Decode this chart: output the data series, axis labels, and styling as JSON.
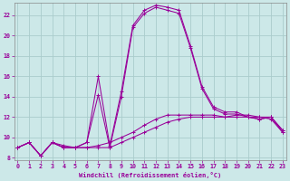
{
  "xlabel": "Windchill (Refroidissement éolien,°C)",
  "bg_color": "#cce8e8",
  "grid_color": "#aacccc",
  "line_color": "#990099",
  "xticks": [
    0,
    1,
    2,
    3,
    4,
    5,
    6,
    7,
    8,
    9,
    10,
    11,
    12,
    13,
    14,
    15,
    16,
    17,
    18,
    19,
    20,
    21,
    22,
    23
  ],
  "yticks": [
    8,
    10,
    12,
    14,
    16,
    18,
    20,
    22
  ],
  "xlim": [
    -0.3,
    23.3
  ],
  "ylim": [
    7.8,
    23.2
  ],
  "line1_y": [
    9.0,
    9.5,
    8.2,
    9.5,
    9.0,
    9.0,
    9.5,
    16.0,
    9.2,
    14.5,
    21.0,
    22.5,
    23.0,
    22.8,
    22.5,
    19.0,
    15.0,
    13.0,
    12.5,
    12.5,
    12.0,
    11.8,
    12.0,
    10.7
  ],
  "line2_y": [
    9.0,
    9.5,
    8.2,
    9.5,
    9.0,
    9.0,
    9.5,
    14.2,
    9.0,
    14.0,
    20.8,
    22.2,
    22.8,
    22.5,
    22.2,
    18.8,
    14.8,
    12.8,
    12.3,
    12.3,
    12.0,
    11.8,
    12.0,
    10.5
  ],
  "line3_y": [
    9.0,
    9.5,
    8.2,
    9.5,
    9.2,
    9.0,
    9.0,
    9.2,
    9.5,
    10.0,
    10.5,
    11.2,
    11.8,
    12.2,
    12.2,
    12.2,
    12.2,
    12.2,
    12.0,
    12.2,
    12.2,
    12.0,
    12.0,
    10.7
  ],
  "line4_y": [
    9.0,
    9.5,
    8.2,
    9.5,
    9.0,
    9.0,
    9.0,
    9.0,
    9.0,
    9.5,
    10.0,
    10.5,
    11.0,
    11.5,
    11.8,
    12.0,
    12.0,
    12.0,
    12.0,
    12.0,
    12.0,
    12.0,
    11.8,
    10.5
  ]
}
